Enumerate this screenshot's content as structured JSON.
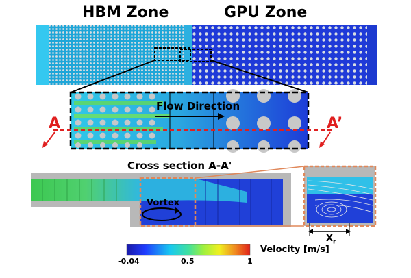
{
  "zones": {
    "left": "HBM Zone",
    "right": "GPU Zone"
  },
  "detail": {
    "flow_label": "Flow Direction",
    "section_start": "A",
    "section_end": "A’"
  },
  "cross_section": {
    "title": "Cross section A-A'",
    "vortex_label": "Vortex",
    "reattach_symbol": "X",
    "reattach_subscript": "r"
  },
  "colorbar": {
    "min_label": "-0.04",
    "mid_label": "0.5",
    "max_label": "1",
    "title": "Velocity [m/s]"
  },
  "colors": {
    "dashed_highlight": "#000000",
    "section_line": "#e02020",
    "zoom_box": "#e0885a",
    "pillar": "#c8c8c8"
  }
}
